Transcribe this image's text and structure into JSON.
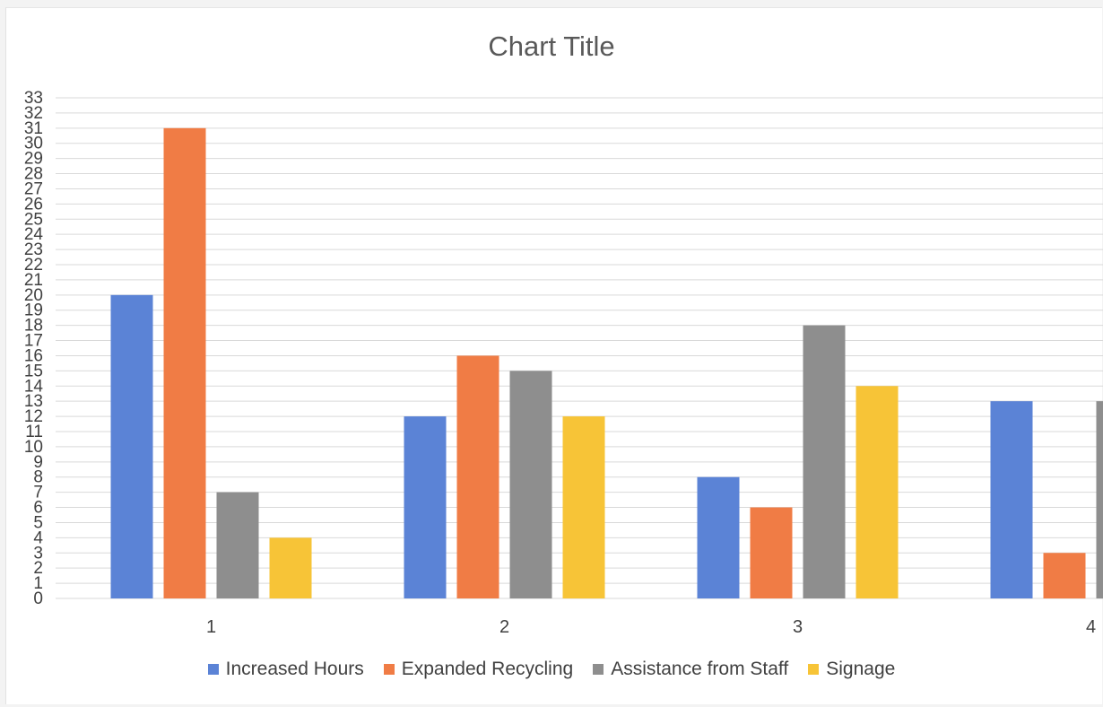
{
  "chart_data": {
    "type": "bar",
    "title": "Chart Title",
    "xlabel": "",
    "ylabel": "",
    "categories": [
      "1",
      "2",
      "3",
      "4"
    ],
    "ylim": [
      0,
      33
    ],
    "yticks": [
      0,
      1,
      2,
      3,
      4,
      5,
      6,
      7,
      8,
      9,
      10,
      11,
      12,
      13,
      14,
      15,
      16,
      17,
      18,
      19,
      20,
      21,
      22,
      23,
      24,
      25,
      26,
      27,
      28,
      29,
      30,
      31,
      32,
      33
    ],
    "grid": true,
    "legend_position": "bottom",
    "series": [
      {
        "name": "Increased Hours",
        "color": "#5b83d6",
        "values": [
          20,
          12,
          8,
          13
        ]
      },
      {
        "name": "Expanded Recycling",
        "color": "#f07c45",
        "values": [
          31,
          16,
          6,
          3
        ]
      },
      {
        "name": "Assistance from Staff",
        "color": "#8e8e8e",
        "values": [
          7,
          15,
          18,
          13
        ]
      },
      {
        "name": "Signage",
        "color": "#f7c437",
        "values": [
          4,
          12,
          14,
          null
        ]
      }
    ]
  }
}
